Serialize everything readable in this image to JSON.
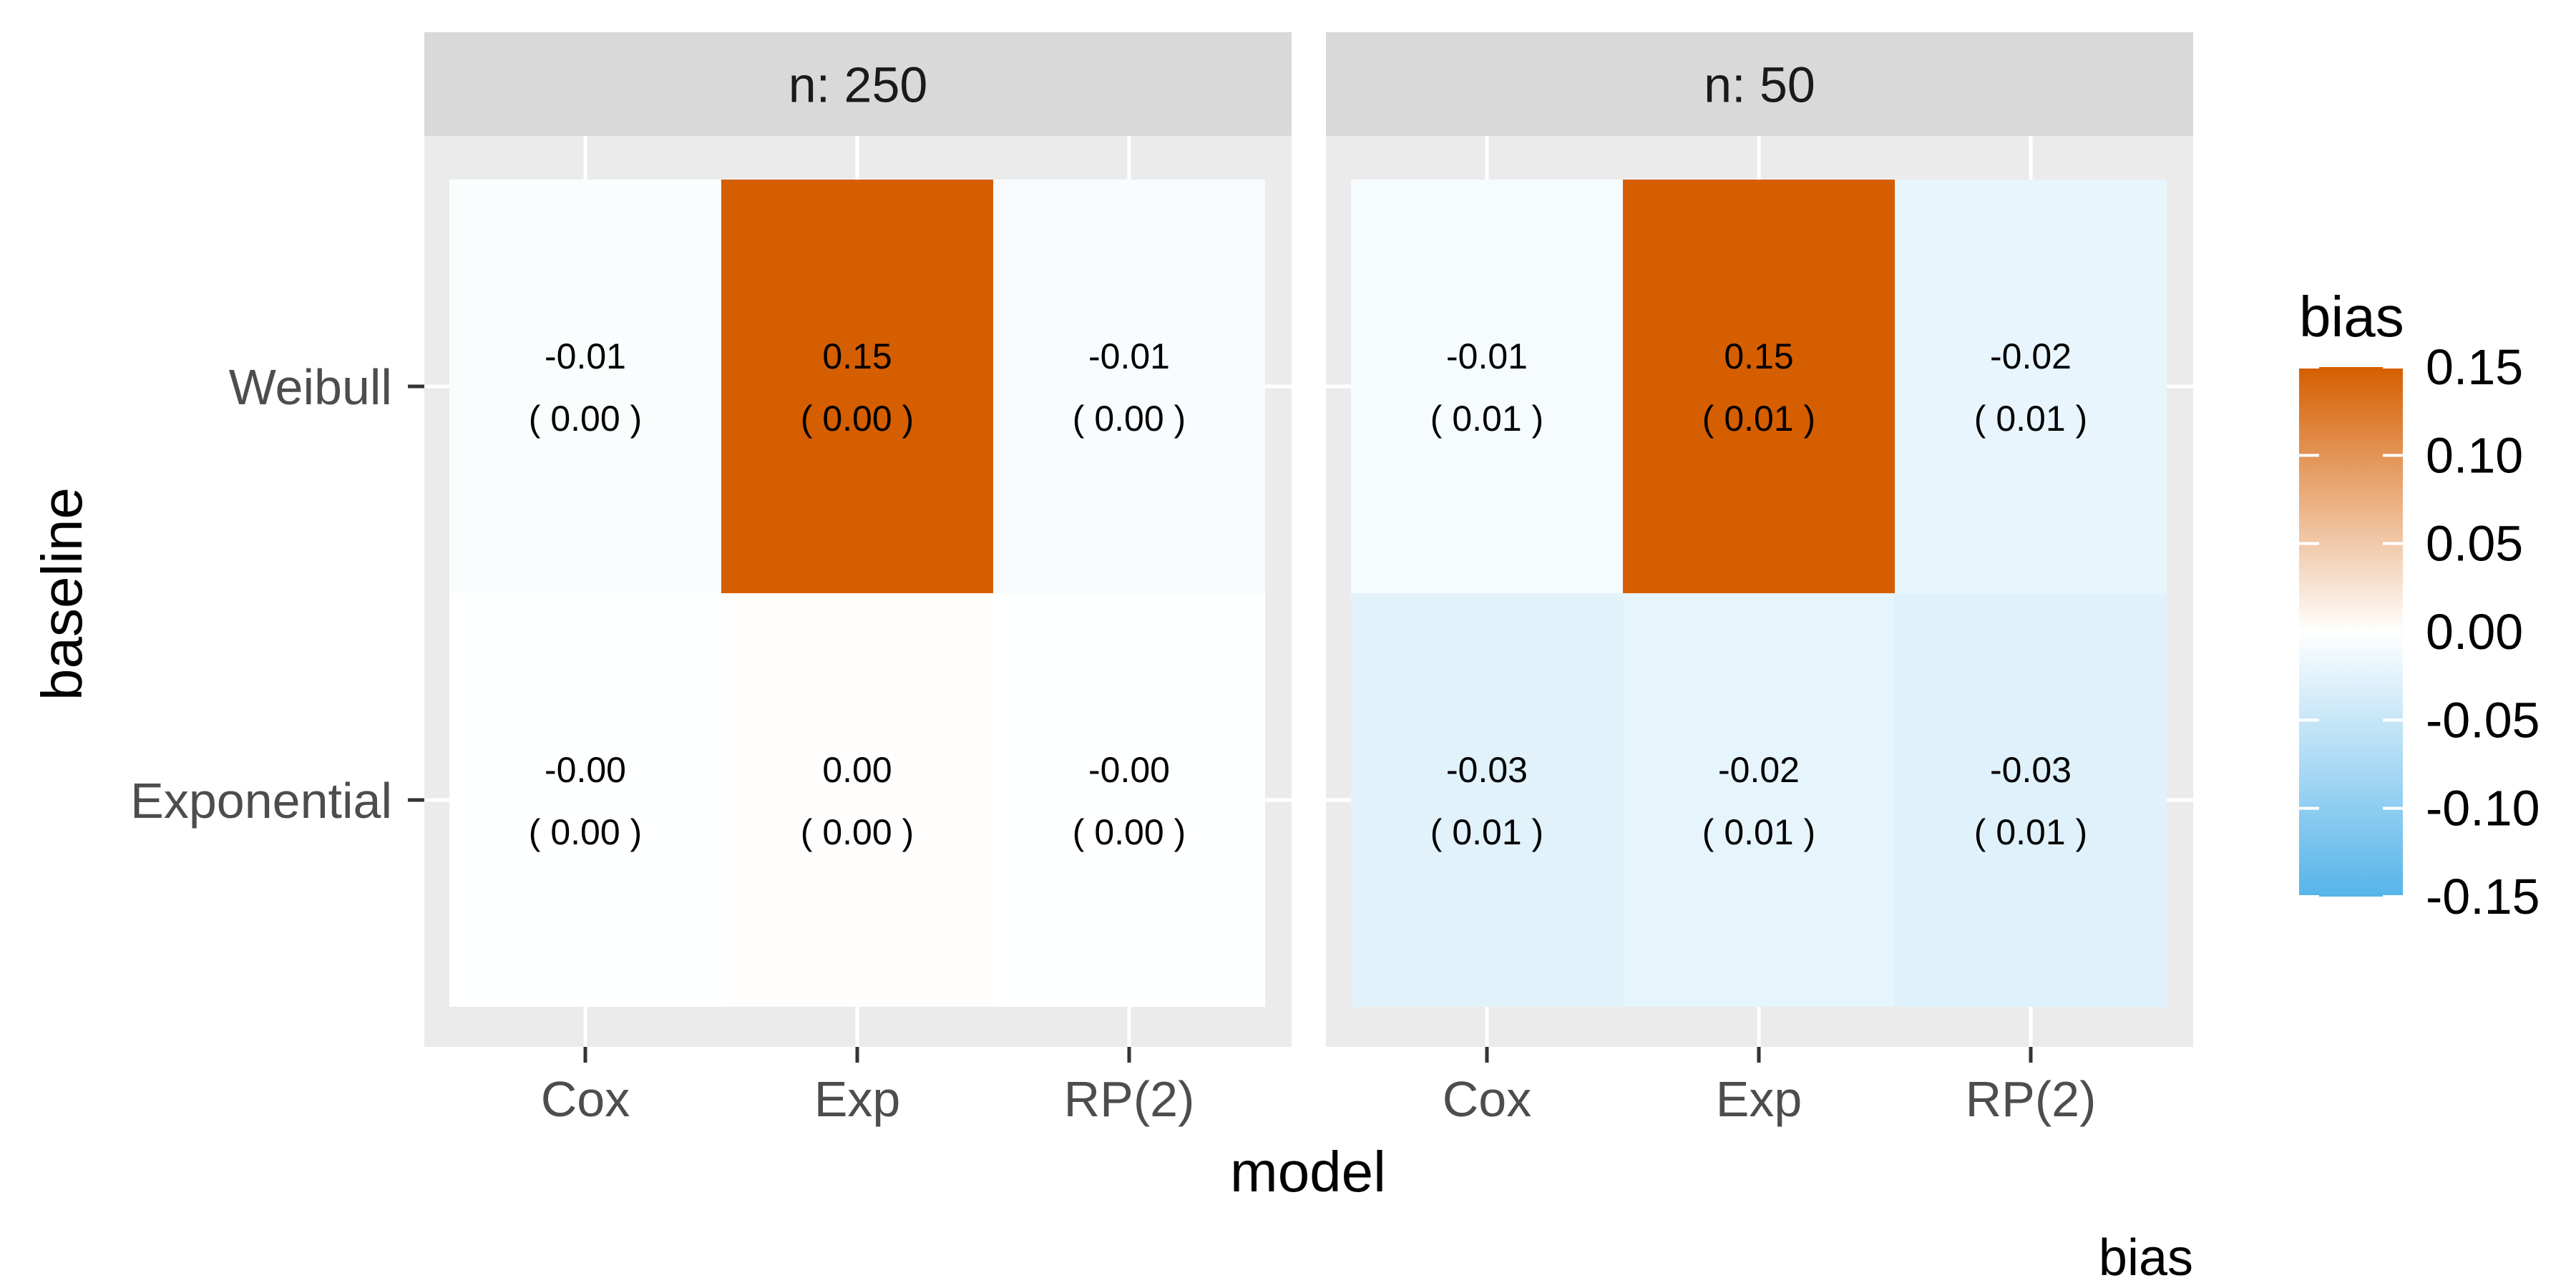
{
  "chart_data": {
    "type": "heatmap",
    "title": "",
    "xlabel": "model",
    "ylabel": "baseline",
    "caption": "bias",
    "x_categories": [
      "Cox",
      "Exp",
      "RP(2)"
    ],
    "y_categories": [
      "Weibull",
      "Exponential"
    ],
    "facets": [
      {
        "label": "n: 250",
        "cells": [
          {
            "baseline": "Weibull",
            "model": "Cox",
            "value": -0.005,
            "label": "-0.01",
            "se_label": "( 0.00 )"
          },
          {
            "baseline": "Weibull",
            "model": "Exp",
            "value": 0.15,
            "label": "0.15",
            "se_label": "( 0.00 )"
          },
          {
            "baseline": "Weibull",
            "model": "RP(2)",
            "value": -0.006,
            "label": "-0.01",
            "se_label": "( 0.00 )"
          },
          {
            "baseline": "Exponential",
            "model": "Cox",
            "value": -0.001,
            "label": "-0.00",
            "se_label": "( 0.00 )"
          },
          {
            "baseline": "Exponential",
            "model": "Exp",
            "value": 0.001,
            "label": "0.00",
            "se_label": "( 0.00 )"
          },
          {
            "baseline": "Exponential",
            "model": "RP(2)",
            "value": -0.001,
            "label": "-0.00",
            "se_label": "( 0.00 )"
          }
        ]
      },
      {
        "label": "n: 50",
        "cells": [
          {
            "baseline": "Weibull",
            "model": "Cox",
            "value": -0.008,
            "label": "-0.01",
            "se_label": "( 0.01 )"
          },
          {
            "baseline": "Weibull",
            "model": "Exp",
            "value": 0.15,
            "label": "0.15",
            "se_label": "( 0.01 )"
          },
          {
            "baseline": "Weibull",
            "model": "RP(2)",
            "value": -0.02,
            "label": "-0.02",
            "se_label": "( 0.01 )"
          },
          {
            "baseline": "Exponential",
            "model": "Cox",
            "value": -0.027,
            "label": "-0.03",
            "se_label": "( 0.01 )"
          },
          {
            "baseline": "Exponential",
            "model": "Exp",
            "value": -0.022,
            "label": "-0.02",
            "se_label": "( 0.01 )"
          },
          {
            "baseline": "Exponential",
            "model": "RP(2)",
            "value": -0.028,
            "label": "-0.03",
            "se_label": "( 0.01 )"
          }
        ]
      }
    ],
    "legend": {
      "title": "bias",
      "placement": "right",
      "range": [
        -0.15,
        0.15
      ],
      "ticks": [
        0.15,
        0.1,
        0.05,
        0.0,
        -0.05,
        -0.1,
        -0.15
      ],
      "tick_labels": [
        "0.15",
        "0.10",
        "0.05",
        "0.00",
        "-0.05",
        "-0.10",
        "-0.15"
      ],
      "low_color": "#56B4E9",
      "mid_color": "#ffffff",
      "high_color": "#D55E00"
    },
    "colors": {
      "panel_background": "#EBEBEB",
      "strip_background": "#D9D9D9",
      "grid": "#ffffff",
      "text": "#000000",
      "axis_text": "#4D4D4D"
    }
  }
}
